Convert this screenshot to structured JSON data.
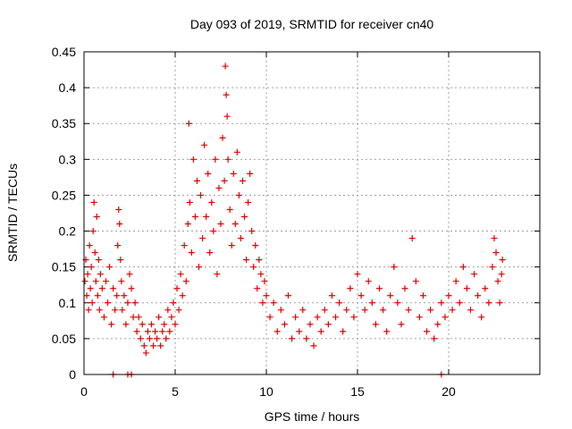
{
  "chart_data": {
    "type": "scatter",
    "title": "Day 093 of 2019, SRMTID for receiver cn40",
    "xlabel": "GPS time / hours",
    "ylabel": "SRMTID / TECUs",
    "xlim": [
      0,
      25
    ],
    "ylim": [
      0,
      0.45
    ],
    "x_ticks": [
      0,
      5,
      10,
      15,
      20
    ],
    "y_ticks": [
      0,
      0.05,
      0.1,
      0.15,
      0.2,
      0.25,
      0.3,
      0.35,
      0.4,
      0.45
    ],
    "x_tick_labels": [
      "0",
      "5",
      "10",
      "15",
      "20"
    ],
    "y_tick_labels": [
      "0",
      "0.05",
      "0.1",
      "0.15",
      "0.2",
      "0.25",
      "0.3",
      "0.35",
      "0.4",
      "0.45"
    ],
    "grid": true,
    "marker": "+",
    "color": "#e00000",
    "series": [
      {
        "name": "SRMTID",
        "points": [
          [
            0.05,
            0.13
          ],
          [
            0.1,
            0.16
          ],
          [
            0.15,
            0.11
          ],
          [
            0.2,
            0.14
          ],
          [
            0.25,
            0.09
          ],
          [
            0.3,
            0.18
          ],
          [
            0.35,
            0.12
          ],
          [
            0.4,
            0.15
          ],
          [
            0.45,
            0.1
          ],
          [
            0.5,
            0.2
          ],
          [
            0.55,
            0.24
          ],
          [
            0.6,
            0.17
          ],
          [
            0.65,
            0.13
          ],
          [
            0.7,
            0.22
          ],
          [
            0.75,
            0.11
          ],
          [
            0.8,
            0.16
          ],
          [
            0.85,
            0.09
          ],
          [
            0.9,
            0.14
          ],
          [
            1.0,
            0.12
          ],
          [
            1.1,
            0.08
          ],
          [
            1.2,
            0.13
          ],
          [
            1.3,
            0.1
          ],
          [
            1.4,
            0.15
          ],
          [
            1.5,
            0.07
          ],
          [
            1.6,
            0.12
          ],
          [
            1.7,
            0.09
          ],
          [
            1.8,
            0.11
          ],
          [
            1.85,
            0.18
          ],
          [
            1.9,
            0.23
          ],
          [
            1.95,
            0.21
          ],
          [
            2.0,
            0.16
          ],
          [
            2.05,
            0.13
          ],
          [
            2.1,
            0.09
          ],
          [
            2.2,
            0.11
          ],
          [
            2.3,
            0.07
          ],
          [
            2.4,
            0.1
          ],
          [
            2.5,
            0.14
          ],
          [
            2.6,
            0.12
          ],
          [
            2.7,
            0.08
          ],
          [
            2.8,
            0.1
          ],
          [
            2.9,
            0.06
          ],
          [
            3.0,
            0.08
          ],
          [
            3.1,
            0.05
          ],
          [
            3.2,
            0.07
          ],
          [
            3.3,
            0.04
          ],
          [
            3.4,
            0.03
          ],
          [
            3.5,
            0.06
          ],
          [
            3.6,
            0.05
          ],
          [
            3.7,
            0.07
          ],
          [
            3.8,
            0.04
          ],
          [
            3.9,
            0.06
          ],
          [
            4.0,
            0.05
          ],
          [
            4.1,
            0.08
          ],
          [
            4.2,
            0.04
          ],
          [
            4.3,
            0.06
          ],
          [
            4.4,
            0.07
          ],
          [
            4.5,
            0.05
          ],
          [
            4.6,
            0.09
          ],
          [
            4.7,
            0.06
          ],
          [
            4.8,
            0.08
          ],
          [
            4.9,
            0.1
          ],
          [
            5.0,
            0.07
          ],
          [
            5.1,
            0.12
          ],
          [
            5.2,
            0.09
          ],
          [
            5.3,
            0.14
          ],
          [
            5.4,
            0.11
          ],
          [
            5.5,
            0.18
          ],
          [
            5.6,
            0.13
          ],
          [
            5.7,
            0.21
          ],
          [
            5.75,
            0.35
          ],
          [
            5.8,
            0.24
          ],
          [
            5.9,
            0.17
          ],
          [
            6.0,
            0.3
          ],
          [
            6.1,
            0.22
          ],
          [
            6.2,
            0.27
          ],
          [
            6.3,
            0.15
          ],
          [
            6.4,
            0.25
          ],
          [
            6.5,
            0.19
          ],
          [
            6.6,
            0.32
          ],
          [
            6.7,
            0.22
          ],
          [
            6.8,
            0.28
          ],
          [
            6.9,
            0.17
          ],
          [
            7.0,
            0.24
          ],
          [
            7.1,
            0.2
          ],
          [
            7.2,
            0.3
          ],
          [
            7.3,
            0.14
          ],
          [
            7.4,
            0.26
          ],
          [
            7.5,
            0.21
          ],
          [
            7.6,
            0.33
          ],
          [
            7.7,
            0.27
          ],
          [
            7.75,
            0.43
          ],
          [
            7.8,
            0.39
          ],
          [
            7.85,
            0.36
          ],
          [
            7.9,
            0.3
          ],
          [
            8.0,
            0.23
          ],
          [
            8.1,
            0.18
          ],
          [
            8.2,
            0.28
          ],
          [
            8.3,
            0.21
          ],
          [
            8.4,
            0.31
          ],
          [
            8.5,
            0.25
          ],
          [
            8.6,
            0.19
          ],
          [
            8.7,
            0.27
          ],
          [
            8.8,
            0.22
          ],
          [
            8.9,
            0.16
          ],
          [
            9.0,
            0.24
          ],
          [
            9.1,
            0.28
          ],
          [
            9.2,
            0.2
          ],
          [
            9.3,
            0.15
          ],
          [
            9.4,
            0.18
          ],
          [
            9.5,
            0.12
          ],
          [
            9.6,
            0.16
          ],
          [
            9.7,
            0.14
          ],
          [
            9.8,
            0.1
          ],
          [
            9.9,
            0.13
          ],
          [
            10.0,
            0.11
          ],
          [
            10.2,
            0.08
          ],
          [
            10.4,
            0.1
          ],
          [
            10.6,
            0.06
          ],
          [
            10.8,
            0.09
          ],
          [
            11.0,
            0.07
          ],
          [
            11.2,
            0.11
          ],
          [
            11.4,
            0.05
          ],
          [
            11.6,
            0.08
          ],
          [
            11.8,
            0.06
          ],
          [
            12.0,
            0.09
          ],
          [
            12.2,
            0.05
          ],
          [
            12.4,
            0.07
          ],
          [
            12.6,
            0.04
          ],
          [
            12.8,
            0.08
          ],
          [
            13.0,
            0.06
          ],
          [
            13.2,
            0.09
          ],
          [
            13.4,
            0.07
          ],
          [
            13.6,
            0.11
          ],
          [
            13.8,
            0.08
          ],
          [
            14.0,
            0.1
          ],
          [
            14.2,
            0.06
          ],
          [
            14.4,
            0.09
          ],
          [
            14.6,
            0.12
          ],
          [
            14.8,
            0.08
          ],
          [
            15.0,
            0.14
          ],
          [
            15.2,
            0.11
          ],
          [
            15.4,
            0.09
          ],
          [
            15.6,
            0.13
          ],
          [
            15.8,
            0.1
          ],
          [
            16.0,
            0.07
          ],
          [
            16.2,
            0.12
          ],
          [
            16.4,
            0.09
          ],
          [
            16.6,
            0.06
          ],
          [
            16.8,
            0.11
          ],
          [
            17.0,
            0.15
          ],
          [
            17.2,
            0.1
          ],
          [
            17.4,
            0.07
          ],
          [
            17.6,
            0.12
          ],
          [
            17.8,
            0.09
          ],
          [
            18.0,
            0.19
          ],
          [
            18.2,
            0.13
          ],
          [
            18.4,
            0.08
          ],
          [
            18.6,
            0.11
          ],
          [
            18.8,
            0.06
          ],
          [
            19.0,
            0.09
          ],
          [
            19.2,
            0.05
          ],
          [
            19.4,
            0.07
          ],
          [
            19.6,
            0.1
          ],
          [
            19.8,
            0.08
          ],
          [
            20.0,
            0.11
          ],
          [
            20.2,
            0.09
          ],
          [
            20.4,
            0.13
          ],
          [
            20.6,
            0.1
          ],
          [
            20.8,
            0.15
          ],
          [
            21.0,
            0.12
          ],
          [
            21.2,
            0.09
          ],
          [
            21.4,
            0.14
          ],
          [
            21.6,
            0.11
          ],
          [
            21.8,
            0.08
          ],
          [
            22.0,
            0.12
          ],
          [
            22.2,
            0.1
          ],
          [
            22.4,
            0.15
          ],
          [
            22.5,
            0.19
          ],
          [
            22.6,
            0.17
          ],
          [
            22.7,
            0.13
          ],
          [
            22.8,
            0.1
          ],
          [
            22.9,
            0.14
          ],
          [
            22.95,
            0.16
          ],
          [
            1.6,
            0.0
          ],
          [
            2.4,
            0.0
          ],
          [
            2.6,
            0.0
          ],
          [
            19.6,
            0.0
          ]
        ]
      }
    ]
  }
}
